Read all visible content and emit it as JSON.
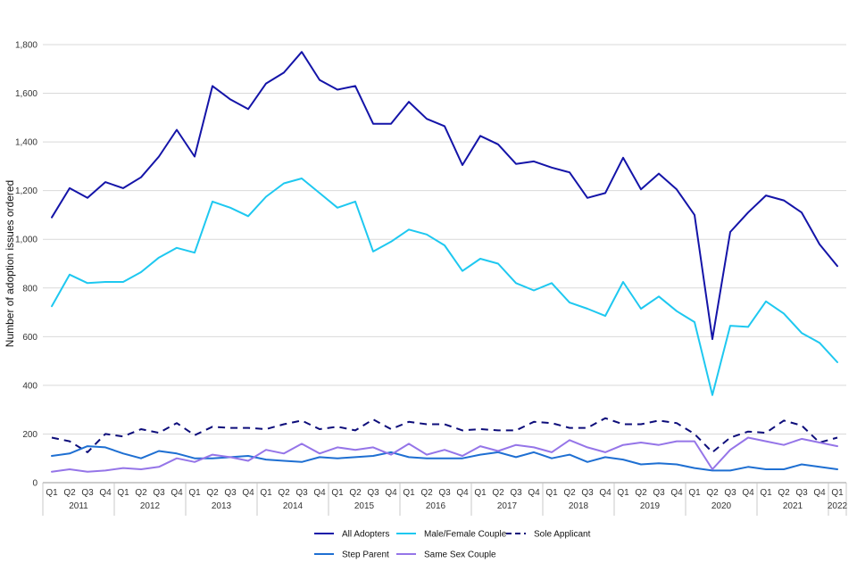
{
  "chart_data": {
    "type": "line",
    "title": "",
    "xlabel": "",
    "ylabel": "Number of adoption issues ordered",
    "ylim": [
      0,
      1800
    ],
    "yticks": [
      0,
      200,
      400,
      600,
      800,
      1000,
      1200,
      1400,
      1600,
      1800
    ],
    "ytick_labels": [
      "0",
      "200",
      "400",
      "600",
      "800",
      "1,000",
      "1,200",
      "1,400",
      "1,600",
      "1,800"
    ],
    "grid": "horizontal",
    "legend_position": "bottom",
    "quarter_labels": [
      "Q1",
      "Q2",
      "Q3",
      "Q4",
      "Q1",
      "Q2",
      "Q3",
      "Q4",
      "Q1",
      "Q2",
      "Q3",
      "Q4",
      "Q1",
      "Q2",
      "Q3",
      "Q4",
      "Q1",
      "Q2",
      "Q3",
      "Q4",
      "Q1",
      "Q2",
      "Q3",
      "Q4",
      "Q1",
      "Q2",
      "Q3",
      "Q4",
      "Q1",
      "Q2",
      "Q3",
      "Q4",
      "Q1",
      "Q2",
      "Q3",
      "Q4",
      "Q1",
      "Q2",
      "Q3",
      "Q4",
      "Q1",
      "Q2",
      "Q3",
      "Q4",
      "Q1"
    ],
    "year_labels": [
      "2011",
      "2012",
      "2013",
      "2014",
      "2015",
      "2016",
      "2017",
      "2018",
      "2019",
      "2020",
      "2021",
      "2022"
    ],
    "series": [
      {
        "name": "All Adopters",
        "color": "#1414a8",
        "dash": "solid",
        "values": [
          1090,
          1210,
          1170,
          1235,
          1210,
          1255,
          1340,
          1450,
          1340,
          1630,
          1575,
          1535,
          1640,
          1685,
          1770,
          1655,
          1615,
          1630,
          1475,
          1475,
          1565,
          1495,
          1465,
          1305,
          1425,
          1390,
          1310,
          1320,
          1295,
          1275,
          1170,
          1190,
          1335,
          1205,
          1270,
          1205,
          1100,
          590,
          1030,
          1110,
          1180,
          1160,
          1110,
          980,
          890
        ]
      },
      {
        "name": "Male/Female Couple",
        "color": "#1ec8f0",
        "dash": "solid",
        "values": [
          725,
          855,
          820,
          825,
          825,
          865,
          925,
          965,
          945,
          1155,
          1130,
          1095,
          1175,
          1230,
          1250,
          1190,
          1130,
          1155,
          950,
          990,
          1040,
          1020,
          975,
          870,
          920,
          900,
          820,
          790,
          820,
          740,
          715,
          685,
          825,
          715,
          765,
          705,
          660,
          360,
          645,
          640,
          745,
          695,
          615,
          575,
          495
        ]
      },
      {
        "name": "Sole Applicant",
        "color": "#0d0d7a",
        "dash": "dashed",
        "values": [
          185,
          170,
          125,
          200,
          190,
          220,
          205,
          245,
          195,
          230,
          225,
          225,
          220,
          240,
          255,
          220,
          230,
          215,
          260,
          220,
          250,
          240,
          240,
          215,
          220,
          215,
          215,
          250,
          245,
          225,
          225,
          265,
          240,
          240,
          255,
          245,
          200,
          125,
          185,
          210,
          205,
          255,
          235,
          165,
          185
        ]
      },
      {
        "name": "Step Parent",
        "color": "#1e6fd2",
        "dash": "solid",
        "values": [
          110,
          120,
          150,
          145,
          120,
          100,
          130,
          120,
          100,
          100,
          105,
          110,
          95,
          90,
          85,
          105,
          100,
          105,
          110,
          125,
          105,
          100,
          100,
          100,
          115,
          125,
          105,
          125,
          100,
          115,
          85,
          105,
          95,
          75,
          80,
          75,
          60,
          50,
          50,
          65,
          55,
          55,
          75,
          65,
          55
        ]
      },
      {
        "name": "Same Sex Couple",
        "color": "#9575e8",
        "dash": "solid",
        "values": [
          45,
          55,
          45,
          50,
          60,
          55,
          65,
          100,
          85,
          115,
          105,
          90,
          135,
          120,
          160,
          120,
          145,
          135,
          145,
          115,
          160,
          115,
          135,
          110,
          150,
          130,
          155,
          145,
          125,
          175,
          145,
          125,
          155,
          165,
          155,
          170,
          170,
          55,
          135,
          185,
          170,
          155,
          180,
          165,
          150
        ]
      }
    ]
  }
}
